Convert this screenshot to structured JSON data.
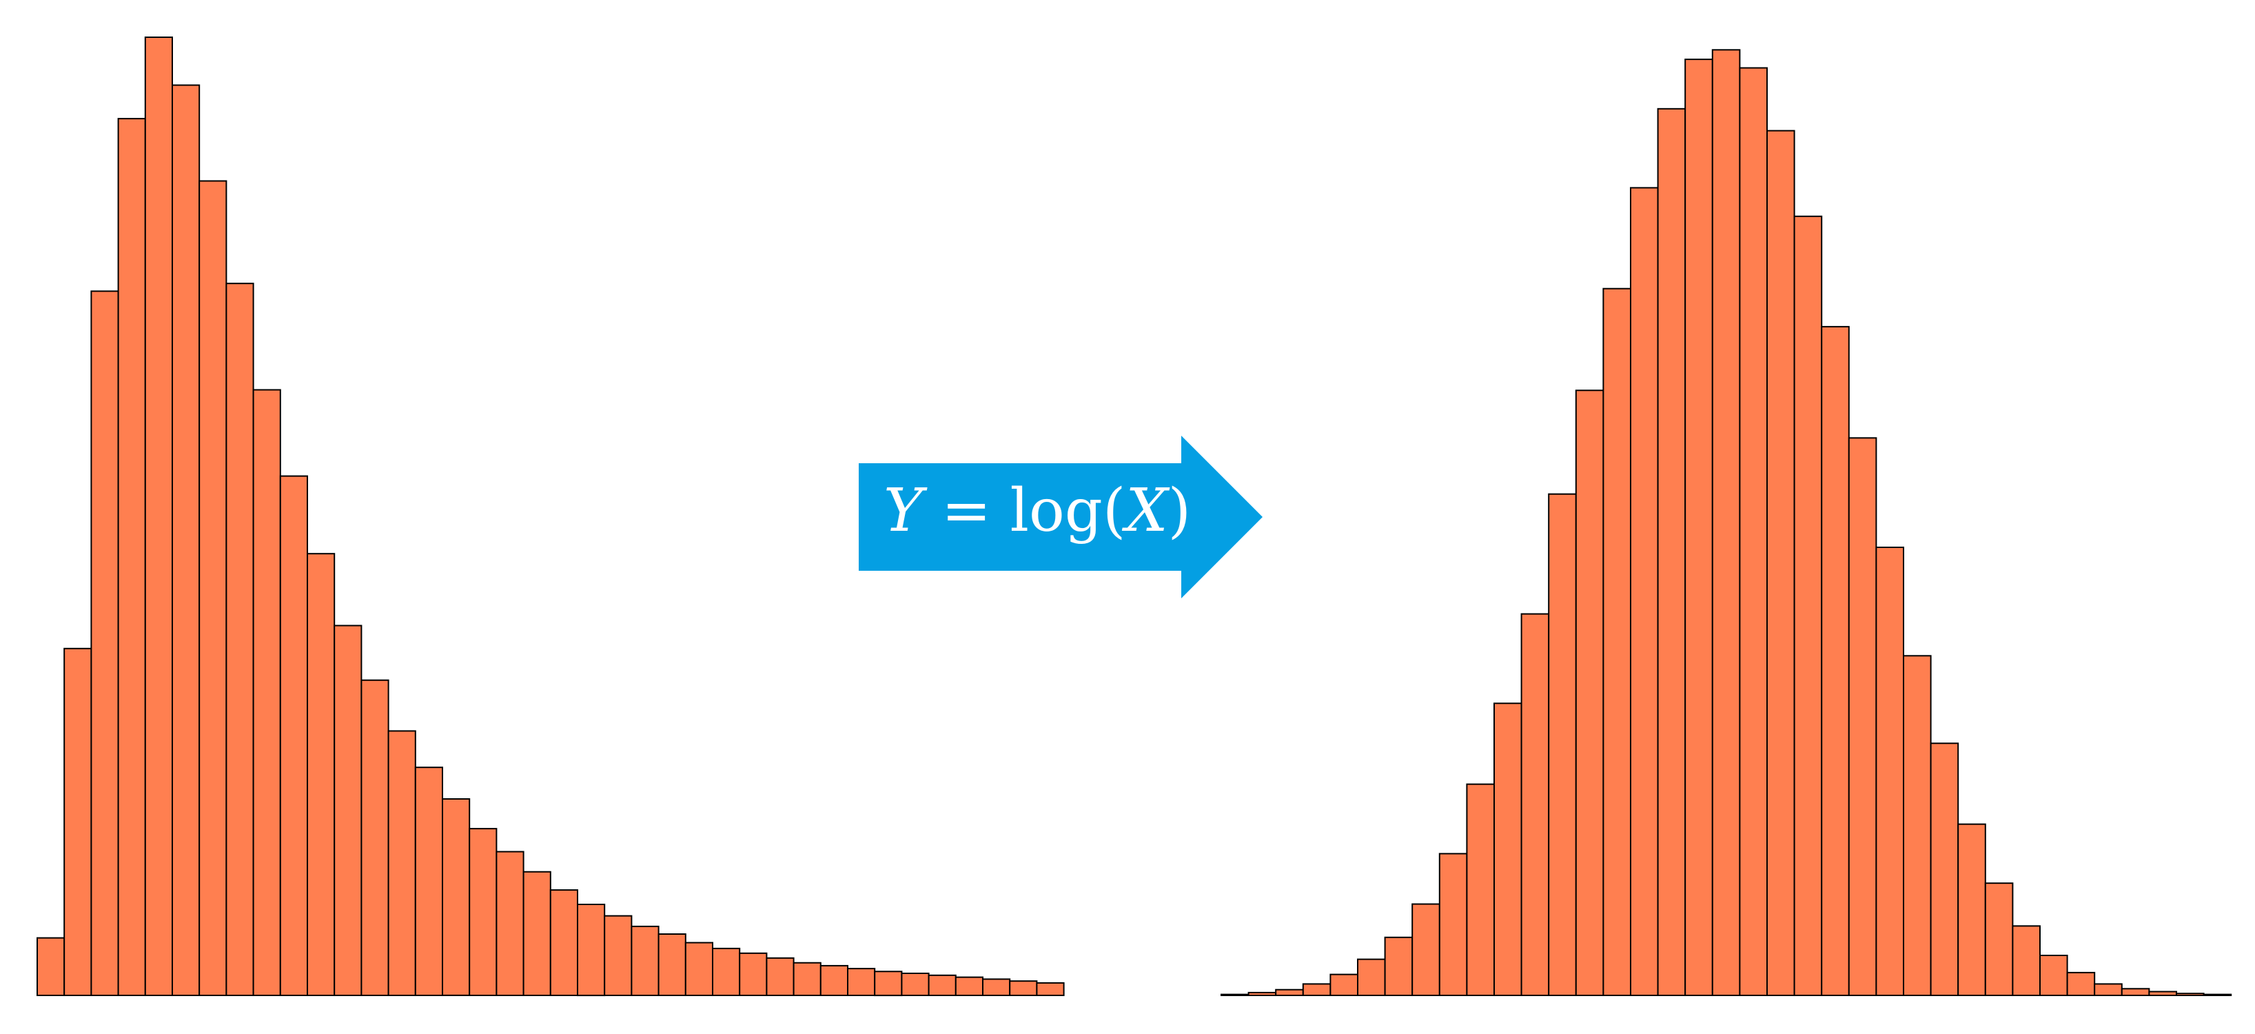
{
  "colors": {
    "bar_fill": "#ff7f50",
    "bar_edge": "#000000",
    "arrow": "#049fe3",
    "arrow_text": "#ffffff"
  },
  "transform": {
    "label_prefix": "Y",
    "label_mid": " = log(",
    "label_var": "X",
    "label_suffix": ")",
    "icon": "right-arrow-icon"
  },
  "chart_data": [
    {
      "type": "bar",
      "description_of_axes": "none",
      "xlabel": "",
      "ylabel": "",
      "ylim": [
        0,
        100
      ],
      "values": [
        6,
        36.2,
        73.5,
        91.5,
        100,
        95,
        85,
        74.3,
        63.2,
        54.2,
        46.1,
        38.6,
        32.9,
        27.6,
        23.8,
        20.5,
        17.4,
        15,
        12.9,
        11,
        9.5,
        8.3,
        7.2,
        6.4,
        5.5,
        4.9,
        4.4,
        3.9,
        3.4,
        3.1,
        2.8,
        2.5,
        2.3,
        2.1,
        1.9,
        1.7,
        1.5,
        1.3
      ]
    },
    {
      "type": "bar",
      "xlabel": "",
      "ylabel": "",
      "ylim": [
        0,
        100
      ],
      "values": [
        0.1,
        0.3,
        0.6,
        1.2,
        2.2,
        3.8,
        6.1,
        9.6,
        14.9,
        22.2,
        30.7,
        40.1,
        52.7,
        63.6,
        74.3,
        84.9,
        93.2,
        98.4,
        99.4,
        97.5,
        90.9,
        81.9,
        70.3,
        58.6,
        47.1,
        35.7,
        26.5,
        18.0,
        11.8,
        7.3,
        4.2,
        2.4,
        1.2,
        0.7,
        0.4,
        0.2,
        0.1
      ]
    }
  ]
}
